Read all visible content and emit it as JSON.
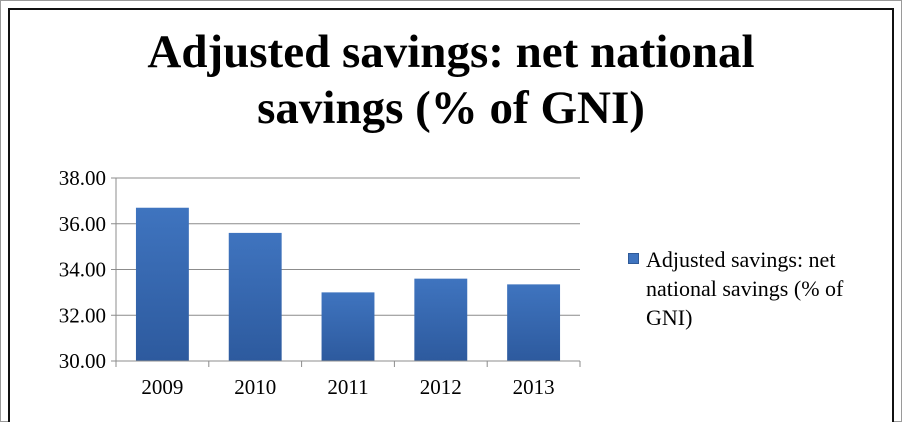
{
  "chart_data": {
    "type": "bar",
    "title_lines": [
      "Adjusted savings: net national",
      "savings (% of GNI)"
    ],
    "categories": [
      "2009",
      "2010",
      "2011",
      "2012",
      "2013"
    ],
    "series": [
      {
        "name": "Adjusted savings: net national savings (% of GNI)",
        "values": [
          36.7,
          35.6,
          33.0,
          33.6,
          33.35
        ]
      }
    ],
    "y_ticks": [
      "30.00",
      "32.00",
      "34.00",
      "36.00",
      "38.00"
    ],
    "ylim": [
      30,
      38
    ],
    "grid": true,
    "legend_position": "right",
    "bar_color": "#3f74bf",
    "bar_color_dark": "#2d5a9e"
  }
}
